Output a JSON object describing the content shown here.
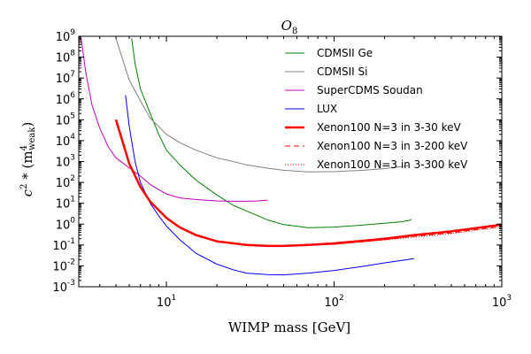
{
  "chart_data": {
    "type": "line",
    "title_main": "O",
    "title_sub": "8",
    "xlabel": "WIMP mass [GeV]",
    "ylabel_main": "c",
    "ylabel_rest": " * (m",
    "ylabel_sup": "4",
    "ylabel_sub": "weak",
    "ylabel_close": ")",
    "x_scale": "log",
    "y_scale": "log",
    "xlim": [
      3,
      1000
    ],
    "ylim": [
      0.001,
      1000000000
    ],
    "x_tick_labels": [
      {
        "value": 10,
        "base": "10",
        "exp": "1"
      },
      {
        "value": 100,
        "base": "10",
        "exp": "2"
      },
      {
        "value": 1000,
        "base": "10",
        "exp": "3"
      }
    ],
    "y_tick_labels": [
      {
        "value": 0.001,
        "base": "10",
        "exp": "-3"
      },
      {
        "value": 0.01,
        "base": "10",
        "exp": "-2"
      },
      {
        "value": 0.1,
        "base": "10",
        "exp": "-1"
      },
      {
        "value": 1,
        "base": "10",
        "exp": "0"
      },
      {
        "value": 10,
        "base": "10",
        "exp": "1"
      },
      {
        "value": 100,
        "base": "10",
        "exp": "2"
      },
      {
        "value": 1000,
        "base": "10",
        "exp": "3"
      },
      {
        "value": 10000,
        "base": "10",
        "exp": "4"
      },
      {
        "value": 100000,
        "base": "10",
        "exp": "5"
      },
      {
        "value": 1000000,
        "base": "10",
        "exp": "6"
      },
      {
        "value": 10000000,
        "base": "10",
        "exp": "7"
      },
      {
        "value": 100000000,
        "base": "10",
        "exp": "8"
      },
      {
        "value": 1000000000,
        "base": "10",
        "exp": "9"
      }
    ],
    "grid": false,
    "legend_position": "upper right",
    "series": [
      {
        "name": "CDMSII Ge",
        "color": "#008000",
        "width": 1,
        "dash": "solid",
        "x": [
          6.2,
          6.5,
          7,
          8,
          9,
          10,
          12,
          15,
          20,
          25,
          30,
          40,
          50,
          70,
          100,
          150,
          200,
          250,
          280,
          290
        ],
        "y": [
          800000000,
          50000000,
          3000000,
          200000,
          20000,
          3500,
          700,
          130,
          25,
          8,
          4.3,
          1.6,
          0.95,
          0.68,
          0.72,
          0.9,
          1.1,
          1.3,
          1.5,
          1.7
        ]
      },
      {
        "name": "CDMSII Si",
        "color": "#808080",
        "width": 1,
        "dash": "solid",
        "x": [
          5,
          6,
          7,
          8,
          10,
          12,
          15,
          20,
          30,
          40,
          50,
          70,
          100,
          150,
          200,
          250,
          280
        ],
        "y": [
          800000000,
          8000000,
          800000,
          120000,
          20000,
          8000,
          3500,
          1500,
          700,
          480,
          380,
          320,
          330,
          380,
          460,
          560,
          650
        ]
      },
      {
        "name": "SuperCDMS Soudan",
        "color": "#bf00bf",
        "width": 1,
        "dash": "solid",
        "x": [
          3.1,
          3.3,
          3.6,
          4,
          4.5,
          5,
          6,
          7,
          8,
          9,
          10,
          12,
          15,
          20,
          25,
          30,
          35,
          40
        ],
        "y": [
          800000000,
          20000000,
          500000,
          40000,
          5000,
          1500,
          500,
          200,
          80,
          45,
          28,
          18,
          15,
          13,
          12.5,
          12.5,
          13,
          14
        ]
      },
      {
        "name": "LUX",
        "color": "#0000ff",
        "width": 1,
        "dash": "solid",
        "x": [
          5.7,
          6,
          6.5,
          7,
          8,
          9,
          10,
          12,
          15,
          20,
          25,
          30,
          40,
          50,
          70,
          100,
          150,
          200,
          300
        ],
        "y": [
          1500000,
          50000,
          1000,
          100,
          10,
          2.5,
          0.8,
          0.18,
          0.04,
          0.012,
          0.0065,
          0.0045,
          0.0038,
          0.0037,
          0.0045,
          0.006,
          0.0095,
          0.014,
          0.022
        ]
      },
      {
        "name": "Xenon100 N=3 in 3-30 keV",
        "color": "#ff0000",
        "width": 2.5,
        "dash": "solid",
        "x": [
          5,
          5.5,
          6,
          7,
          8,
          10,
          12,
          15,
          20,
          30,
          40,
          50,
          70,
          100,
          150,
          200,
          300,
          500,
          700,
          1000
        ],
        "y": [
          100000,
          8000,
          800,
          60,
          12,
          2,
          0.7,
          0.3,
          0.15,
          0.1,
          0.09,
          0.09,
          0.1,
          0.12,
          0.16,
          0.2,
          0.3,
          0.45,
          0.65,
          0.95
        ]
      },
      {
        "name": "Xenon100 N=3 in 3-200 keV",
        "color": "#ff0000",
        "width": 1,
        "dash": "6,4",
        "x": [
          60,
          100,
          150,
          200,
          300,
          500,
          700,
          1000
        ],
        "y": [
          0.095,
          0.11,
          0.145,
          0.18,
          0.26,
          0.38,
          0.55,
          0.78
        ]
      },
      {
        "name": "Xenon100 N=3 in 3-300 keV",
        "color": "#ff0000",
        "width": 1,
        "dash": "1,2",
        "x": [
          60,
          100,
          150,
          200,
          300,
          500,
          700,
          1000
        ],
        "y": [
          0.095,
          0.105,
          0.14,
          0.17,
          0.24,
          0.35,
          0.5,
          0.7
        ]
      }
    ]
  }
}
